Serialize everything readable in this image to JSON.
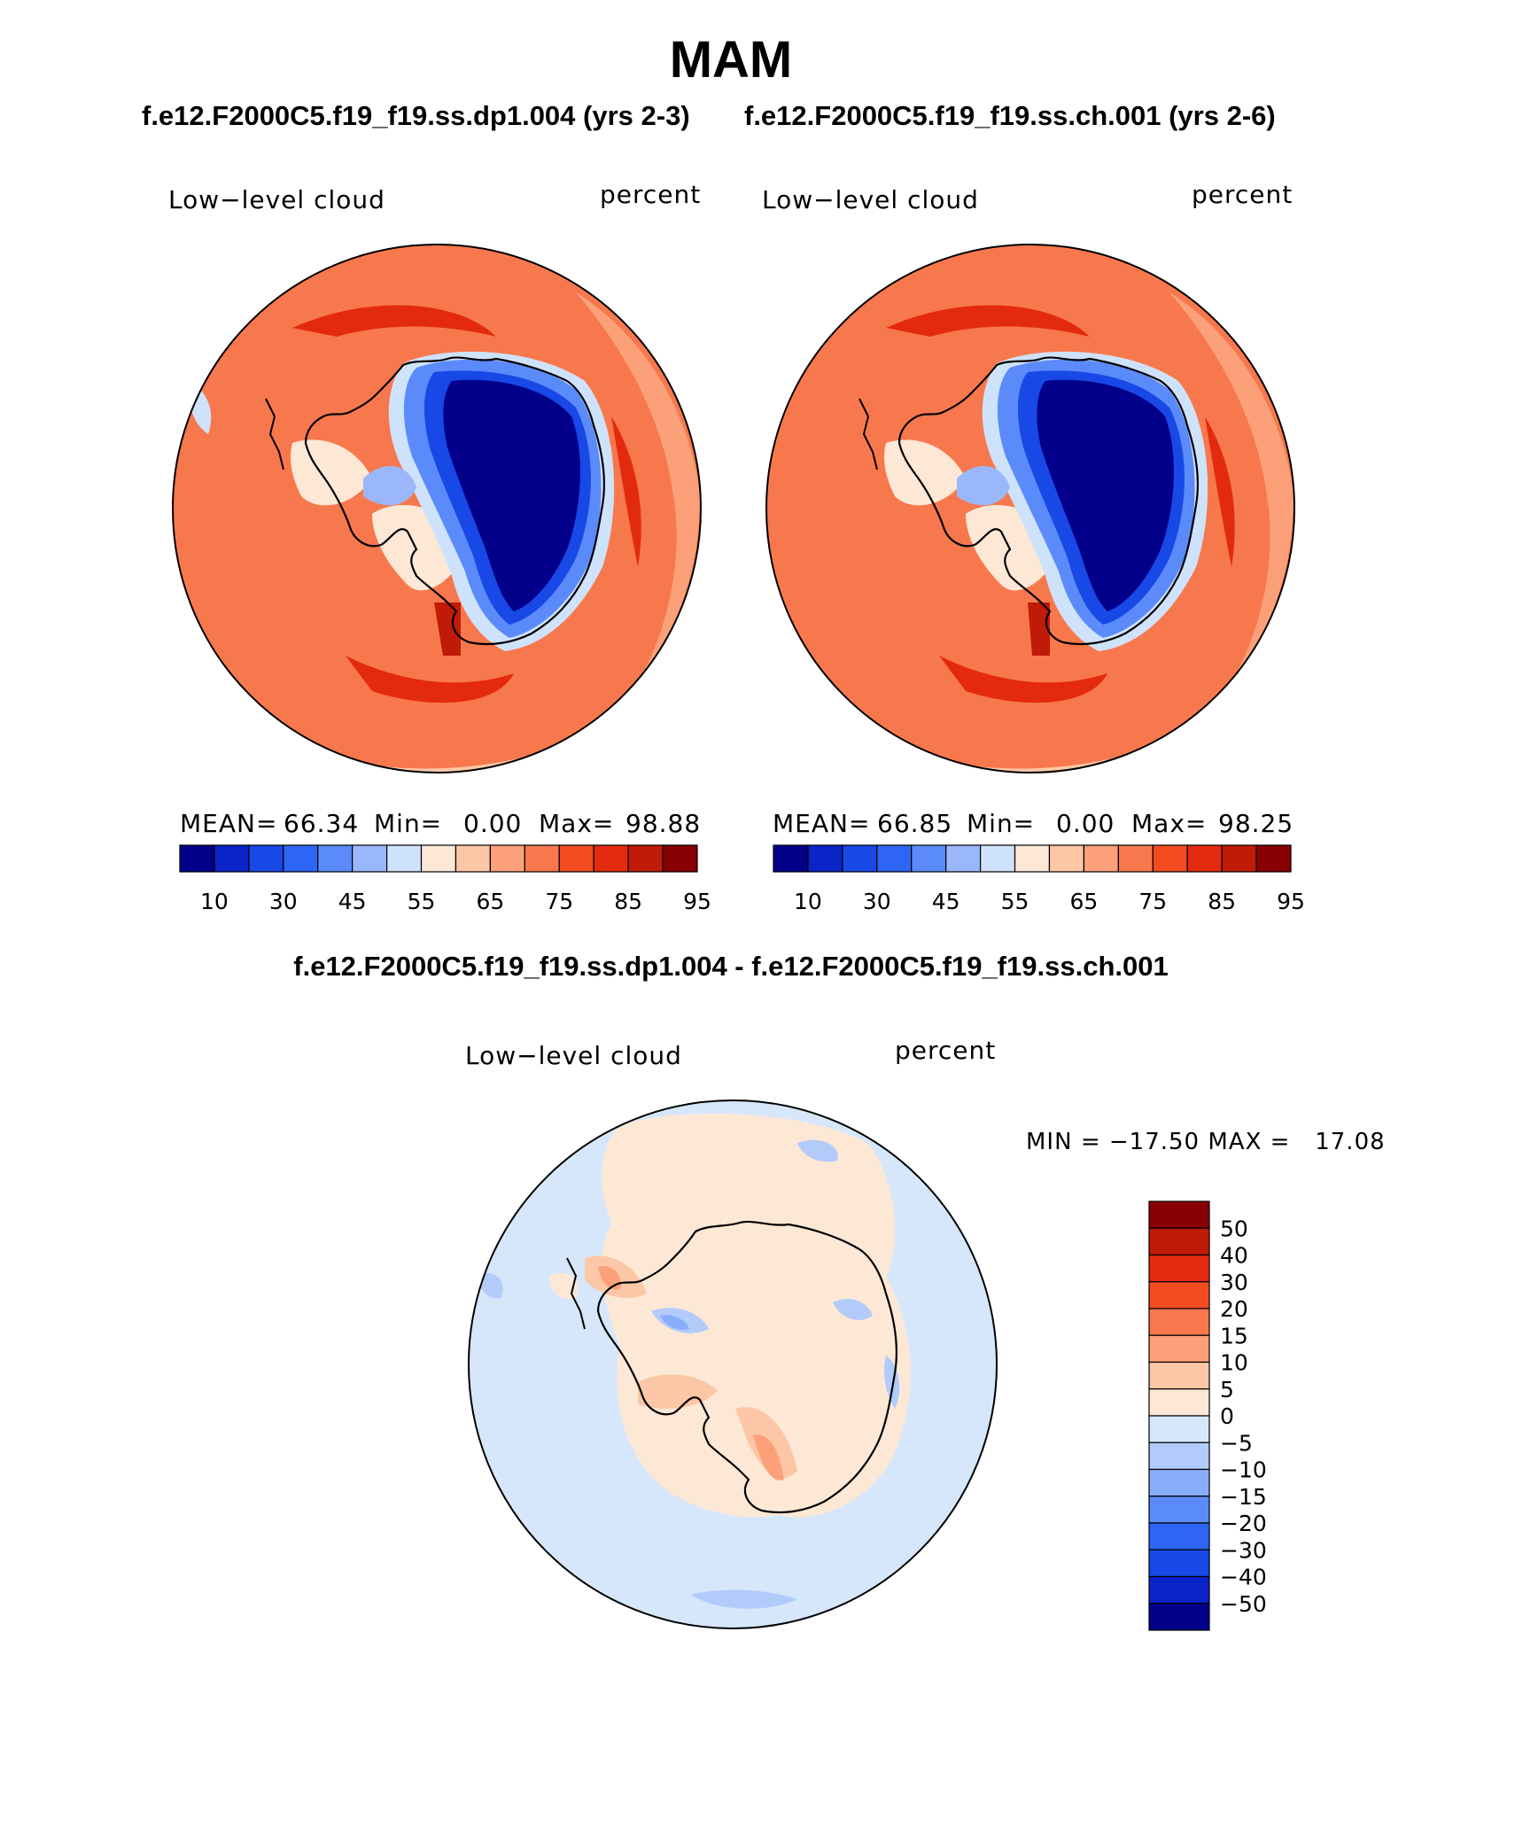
{
  "figure": {
    "season": "MAM",
    "case_a_title": "f.e12.F2000C5.f19_f19.ss.dp1.004 (yrs 2-3)",
    "case_b_title": "f.e12.F2000C5.f19_f19.ss.ch.001 (yrs 2-6)",
    "diff_title": "f.e12.F2000C5.f19_f19.ss.dp1.004 - f.e12.F2000C5.f19_f19.ss.ch.001"
  },
  "chart_data": [
    {
      "type": "heatmap",
      "projection": "polar-stereographic-south",
      "variable": "Low−level cloud",
      "units": "percent",
      "stats": {
        "mean_label": "MEAN=",
        "mean": "66.34",
        "min_label": "Min=",
        "min": "0.00",
        "max_label": "Max=",
        "max": "98.88"
      },
      "colorbar": {
        "orientation": "horizontal",
        "levels": [
          "10",
          "30",
          "45",
          "55",
          "65",
          "75",
          "85",
          "95"
        ],
        "colors": [
          "#02008a",
          "#0a24c7",
          "#1848e6",
          "#2d66f5",
          "#5b8bfa",
          "#9bb7fb",
          "#cfe2fb",
          "#fde8d6",
          "#fcc7a6",
          "#fca07a",
          "#f8784d",
          "#f34b20",
          "#e32a0f",
          "#bf1b06",
          "#880004"
        ]
      }
    },
    {
      "type": "heatmap",
      "projection": "polar-stereographic-south",
      "variable": "Low−level cloud",
      "units": "percent",
      "stats": {
        "mean_label": "MEAN=",
        "mean": "66.85",
        "min_label": "Min=",
        "min": "0.00",
        "max_label": "Max=",
        "max": "98.25"
      },
      "colorbar": {
        "orientation": "horizontal",
        "levels": [
          "10",
          "30",
          "45",
          "55",
          "65",
          "75",
          "85",
          "95"
        ],
        "colors": [
          "#02008a",
          "#0a24c7",
          "#1848e6",
          "#2d66f5",
          "#5b8bfa",
          "#9bb7fb",
          "#cfe2fb",
          "#fde8d6",
          "#fcc7a6",
          "#fca07a",
          "#f8784d",
          "#f34b20",
          "#e32a0f",
          "#bf1b06",
          "#880004"
        ]
      }
    },
    {
      "type": "heatmap",
      "projection": "polar-stereographic-south",
      "variable": "Low−level cloud",
      "units": "percent",
      "stats": {
        "text": "MIN = −17.50 MAX =   17.08"
      },
      "colorbar": {
        "orientation": "vertical",
        "levels": [
          "50",
          "40",
          "30",
          "20",
          "15",
          "10",
          "5",
          "0",
          "−5",
          "−10",
          "−15",
          "−20",
          "−30",
          "−40",
          "−50"
        ],
        "colors": [
          "#880004",
          "#bf1b06",
          "#e32a0f",
          "#f34b20",
          "#f8784d",
          "#fca07a",
          "#fcc7a6",
          "#fde8d6",
          "#d6e7fb",
          "#b2cbfb",
          "#8aadf9",
          "#5b8bfa",
          "#2d66f5",
          "#1848e6",
          "#0a24c7",
          "#02008a"
        ]
      }
    }
  ]
}
